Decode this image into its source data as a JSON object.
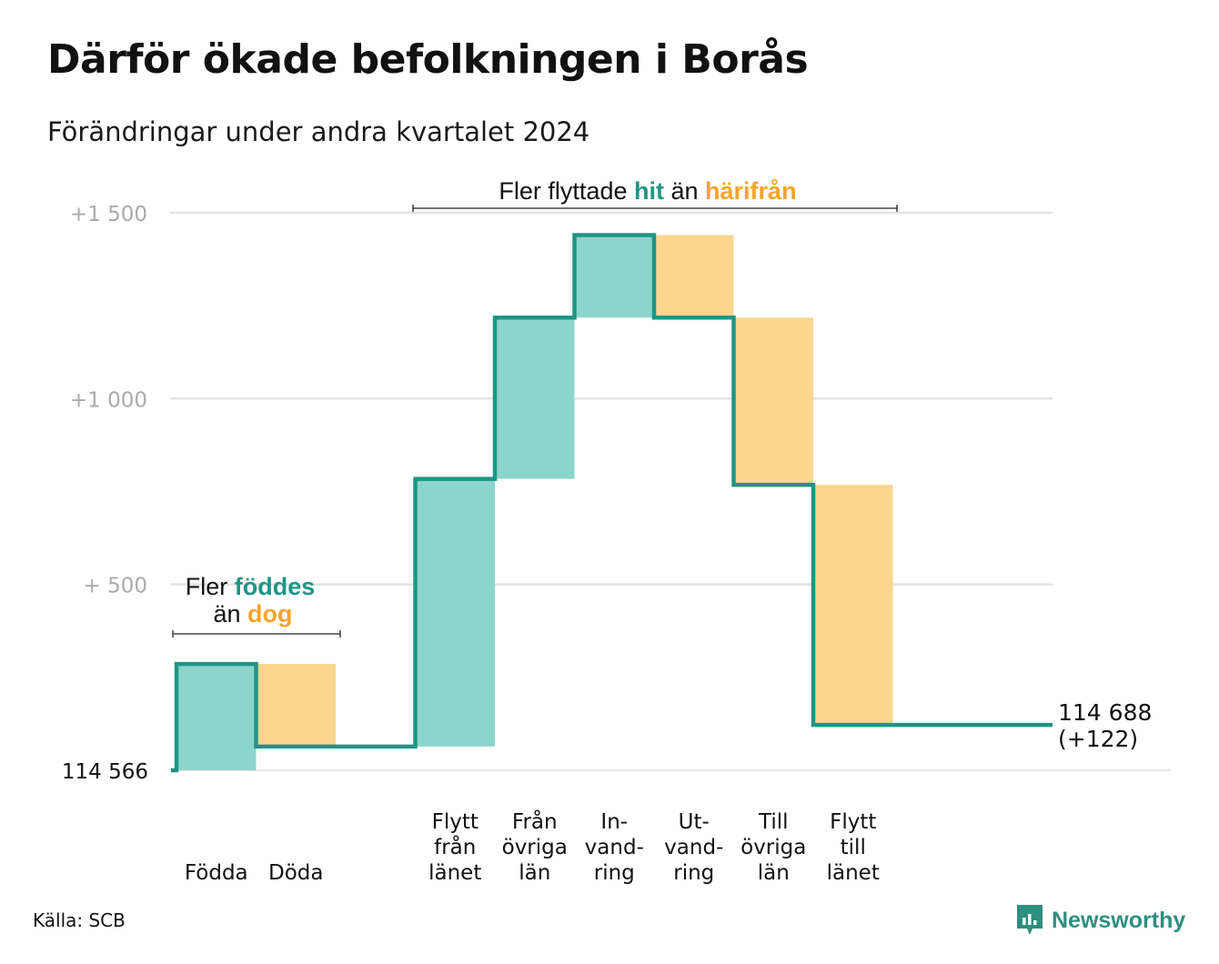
{
  "title": "Därför ökade befolkningen i Borås",
  "subtitle": "Förändringar under andra kvartalet 2024",
  "source": "Källa: SCB",
  "brand": "Newsworthy",
  "colors": {
    "increase_fill": "#8dd5cc",
    "decrease_fill": "#fad68e",
    "line": "#1f9585",
    "accent_teal": "#1f9585",
    "accent_orange": "#f3a52a",
    "grid": "#e3e3e3",
    "tick_text": "#aaaaaa"
  },
  "chart_data": {
    "type": "waterfall",
    "start_value": 114566,
    "start_label": "114  566",
    "end_label": "114 688",
    "end_change_label": "(+122)",
    "ylim": [
      0,
      1500
    ],
    "yticks": [
      {
        "value": 500,
        "label": "+  500"
      },
      {
        "value": 1000,
        "label": "+1  000"
      },
      {
        "value": 1500,
        "label": "+1  500"
      }
    ],
    "steps": [
      {
        "label_lines": [
          "Födda"
        ],
        "change": 286
      },
      {
        "label_lines": [
          "Döda"
        ],
        "change": -222
      },
      {
        "label_lines": [],
        "change": 0
      },
      {
        "label_lines": [
          "Flytt",
          "från",
          "länet"
        ],
        "change": 720
      },
      {
        "label_lines": [
          "Från",
          "övriga",
          "län"
        ],
        "change": 434
      },
      {
        "label_lines": [
          "In-",
          "vand-",
          "ring"
        ],
        "change": 222
      },
      {
        "label_lines": [
          "Ut-",
          "vand-",
          "ring"
        ],
        "change": -222
      },
      {
        "label_lines": [
          "Till",
          "övriga",
          "län"
        ],
        "change": -450
      },
      {
        "label_lines": [
          "Flytt",
          "till",
          "länet"
        ],
        "change": -646
      },
      {
        "label_lines": [],
        "change": 0
      },
      {
        "label_lines": [],
        "change": 0
      }
    ],
    "annotations": [
      {
        "line1": [
          {
            "text": "Fler "
          },
          {
            "text": "föddes",
            "color": "teal"
          }
        ],
        "line2": [
          {
            "text": "än "
          },
          {
            "text": "dog",
            "color": "orange"
          }
        ],
        "from_step": 0,
        "to_step": 1
      },
      {
        "line1": [
          {
            "text": "Fler flyttade "
          },
          {
            "text": "hit",
            "color": "teal"
          },
          {
            "text": "  än "
          },
          {
            "text": "härifrån",
            "color": "orange"
          }
        ],
        "from_step": 3,
        "to_step": 8
      }
    ]
  }
}
